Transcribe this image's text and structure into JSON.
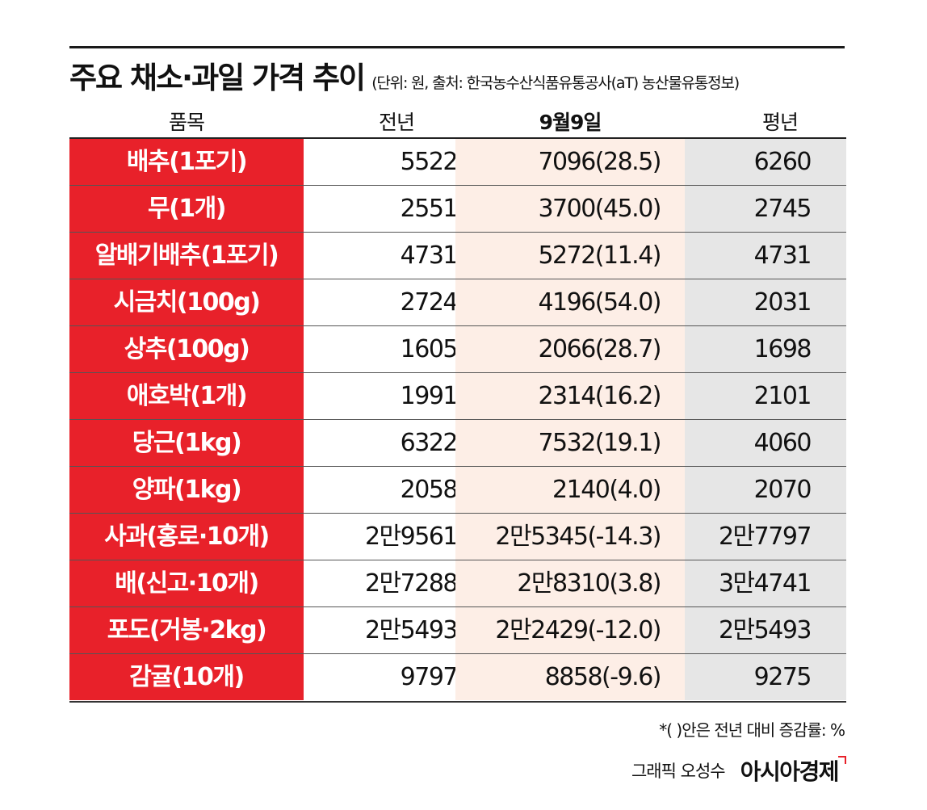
{
  "header": {
    "title": "주요 채소·과일 가격 추이",
    "subtitle": "(단위: 원, 출처: 한국농수산식품유통공사(aT) 농산물유통정보)"
  },
  "chart_data": {
    "type": "table",
    "columns": [
      "품목",
      "전년",
      "9월9일",
      "평년"
    ],
    "rows": [
      {
        "item": "배추(1포기)",
        "prev": "5522",
        "curr": "7096(28.5)",
        "avg": "6260"
      },
      {
        "item": "무(1개)",
        "prev": "2551",
        "curr": "3700(45.0)",
        "avg": "2745"
      },
      {
        "item": "알배기배추(1포기)",
        "prev": "4731",
        "curr": "5272(11.4)",
        "avg": "4731"
      },
      {
        "item": "시금치(100g)",
        "prev": "2724",
        "curr": "4196(54.0)",
        "avg": "2031"
      },
      {
        "item": "상추(100g)",
        "prev": "1605",
        "curr": "2066(28.7)",
        "avg": "1698"
      },
      {
        "item": "애호박(1개)",
        "prev": "1991",
        "curr": "2314(16.2)",
        "avg": "2101"
      },
      {
        "item": "당근(1kg)",
        "prev": "6322",
        "curr": "7532(19.1)",
        "avg": "4060"
      },
      {
        "item": "양파(1kg)",
        "prev": "2058",
        "curr": "2140(4.0)",
        "avg": "2070"
      },
      {
        "item": "사과(홍로·10개)",
        "prev": "2만9561",
        "curr": "2만5345(-14.3)",
        "avg": "2만7797"
      },
      {
        "item": "배(신고·10개)",
        "prev": "2만7288",
        "curr": "2만8310(3.8)",
        "avg": "3만4741"
      },
      {
        "item": "포도(거봉·2kg)",
        "prev": "2만5493",
        "curr": "2만2429(-12.0)",
        "avg": "2만5493"
      },
      {
        "item": "감귤(10개)",
        "prev": "9797",
        "curr": "8858(-9.6)",
        "avg": "9275"
      }
    ]
  },
  "footer": {
    "note": "*(   )안은 전년 대비 증감률: %",
    "credit": "그래픽 오성수",
    "brand": "아시아경제"
  },
  "colors": {
    "item_bg": "#e8212a",
    "current_bg": "#fdeee6",
    "average_bg": "#e6e6e6"
  }
}
